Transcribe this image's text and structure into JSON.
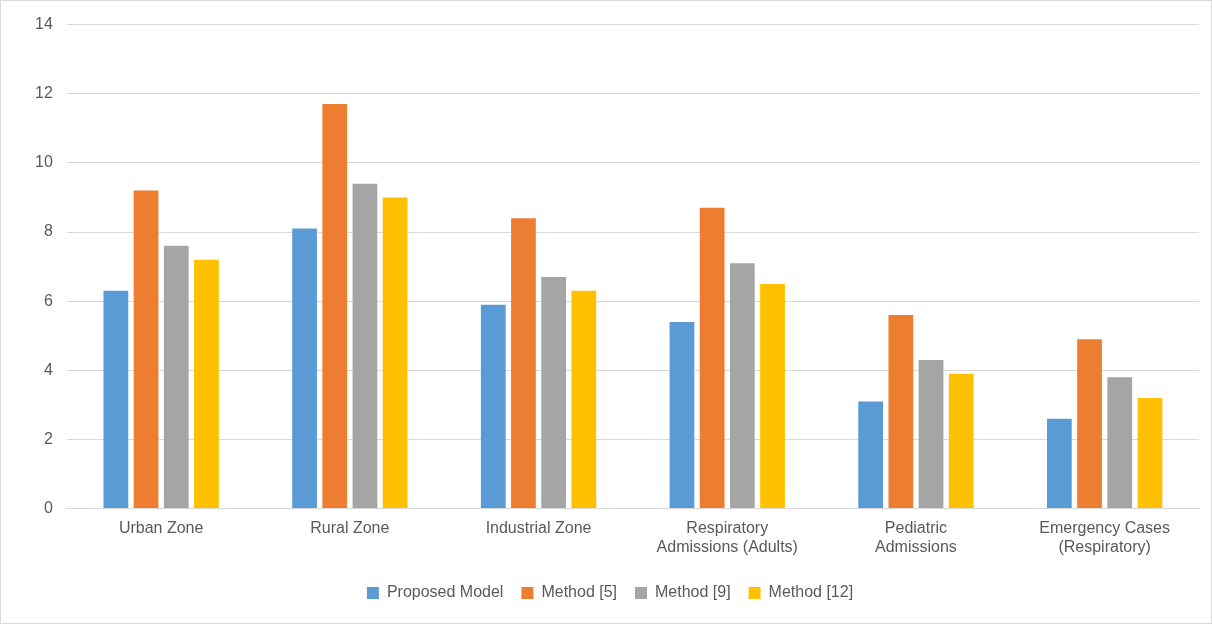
{
  "chart_data": {
    "type": "bar",
    "categories": [
      "Urban Zone",
      "Rural Zone",
      "Industrial Zone",
      "Respiratory Admissions (Adults)",
      "Pediatric Admissions",
      "Emergency Cases (Respiratory)"
    ],
    "series": [
      {
        "name": "Proposed Model",
        "color": "#5b9bd5",
        "values": [
          6.3,
          8.1,
          5.9,
          5.4,
          3.1,
          2.6
        ]
      },
      {
        "name": "Method [5]",
        "color": "#ed7d31",
        "values": [
          9.2,
          11.7,
          8.4,
          8.7,
          5.6,
          4.9
        ]
      },
      {
        "name": "Method [9]",
        "color": "#a5a5a5",
        "values": [
          7.6,
          9.4,
          6.7,
          7.1,
          4.3,
          3.8
        ]
      },
      {
        "name": "Method [12]",
        "color": "#ffc000",
        "values": [
          7.2,
          9.0,
          6.3,
          6.5,
          3.9,
          3.2
        ]
      }
    ],
    "ylim": [
      0,
      14
    ],
    "yticks": [
      0,
      2,
      4,
      6,
      8,
      10,
      12,
      14
    ],
    "grid": "y",
    "legend": "bottom"
  }
}
